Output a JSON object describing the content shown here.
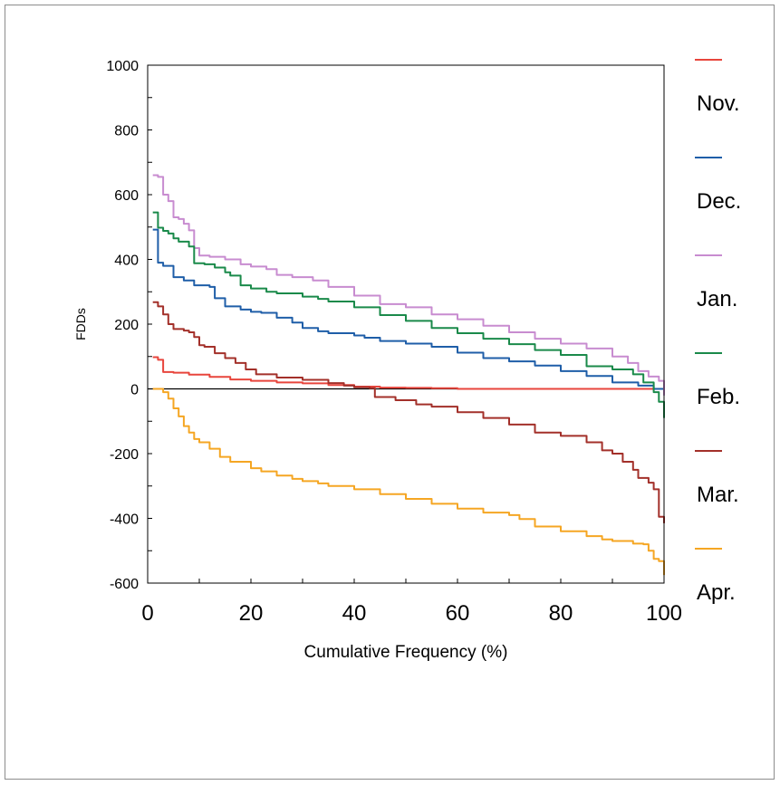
{
  "chart_data": {
    "type": "line",
    "title": "",
    "xlabel": "Cumulative Frequency (%)",
    "ylabel": "FDDs",
    "xlim": [
      0,
      100
    ],
    "ylim": [
      -600,
      1000
    ],
    "x_ticks": [
      0,
      20,
      40,
      60,
      80,
      100
    ],
    "y_ticks": [
      -600,
      -400,
      -200,
      0,
      200,
      400,
      600,
      800,
      1000
    ],
    "zero_line": true,
    "grid": false,
    "legend_position": "right",
    "series": [
      {
        "name": "Nov.",
        "color": "#e8453c",
        "points": [
          [
            1,
            98
          ],
          [
            2,
            90
          ],
          [
            3,
            52
          ],
          [
            5,
            50
          ],
          [
            8,
            44
          ],
          [
            12,
            37
          ],
          [
            16,
            29
          ],
          [
            20,
            25
          ],
          [
            25,
            20
          ],
          [
            30,
            17
          ],
          [
            35,
            12
          ],
          [
            40,
            7
          ],
          [
            45,
            4
          ],
          [
            50,
            3
          ],
          [
            55,
            2
          ],
          [
            60,
            0
          ],
          [
            70,
            0
          ],
          [
            80,
            0
          ],
          [
            90,
            0
          ],
          [
            95,
            0
          ],
          [
            100,
            -5
          ]
        ]
      },
      {
        "name": "Dec.",
        "color": "#1f5ea8",
        "points": [
          [
            1,
            492
          ],
          [
            2,
            390
          ],
          [
            3,
            380
          ],
          [
            5,
            345
          ],
          [
            7,
            335
          ],
          [
            9,
            320
          ],
          [
            12,
            315
          ],
          [
            13,
            280
          ],
          [
            15,
            255
          ],
          [
            18,
            245
          ],
          [
            20,
            238
          ],
          [
            22,
            235
          ],
          [
            25,
            220
          ],
          [
            28,
            205
          ],
          [
            30,
            188
          ],
          [
            33,
            178
          ],
          [
            35,
            172
          ],
          [
            40,
            165
          ],
          [
            42,
            158
          ],
          [
            45,
            148
          ],
          [
            50,
            140
          ],
          [
            55,
            130
          ],
          [
            60,
            112
          ],
          [
            65,
            95
          ],
          [
            70,
            85
          ],
          [
            75,
            72
          ],
          [
            80,
            55
          ],
          [
            85,
            40
          ],
          [
            90,
            20
          ],
          [
            95,
            10
          ],
          [
            98,
            0
          ],
          [
            100,
            -20
          ]
        ]
      },
      {
        "name": "Jan.",
        "color": "#c88cd0",
        "points": [
          [
            1,
            660
          ],
          [
            2,
            655
          ],
          [
            3,
            600
          ],
          [
            4,
            580
          ],
          [
            5,
            530
          ],
          [
            6,
            525
          ],
          [
            7,
            510
          ],
          [
            8,
            490
          ],
          [
            9,
            435
          ],
          [
            10,
            412
          ],
          [
            12,
            408
          ],
          [
            15,
            400
          ],
          [
            18,
            385
          ],
          [
            20,
            378
          ],
          [
            23,
            370
          ],
          [
            25,
            352
          ],
          [
            28,
            345
          ],
          [
            32,
            335
          ],
          [
            35,
            315
          ],
          [
            40,
            288
          ],
          [
            45,
            262
          ],
          [
            50,
            252
          ],
          [
            55,
            230
          ],
          [
            60,
            215
          ],
          [
            65,
            195
          ],
          [
            70,
            175
          ],
          [
            75,
            155
          ],
          [
            80,
            140
          ],
          [
            85,
            125
          ],
          [
            90,
            100
          ],
          [
            93,
            80
          ],
          [
            95,
            55
          ],
          [
            97,
            38
          ],
          [
            99,
            25
          ],
          [
            100,
            -20
          ]
        ]
      },
      {
        "name": "Feb.",
        "color": "#1a8a4a",
        "points": [
          [
            1,
            545
          ],
          [
            2,
            498
          ],
          [
            3,
            488
          ],
          [
            4,
            480
          ],
          [
            5,
            465
          ],
          [
            6,
            455
          ],
          [
            7,
            455
          ],
          [
            8,
            440
          ],
          [
            9,
            388
          ],
          [
            11,
            385
          ],
          [
            13,
            375
          ],
          [
            15,
            360
          ],
          [
            16,
            350
          ],
          [
            18,
            320
          ],
          [
            20,
            310
          ],
          [
            23,
            300
          ],
          [
            25,
            295
          ],
          [
            30,
            285
          ],
          [
            33,
            278
          ],
          [
            35,
            270
          ],
          [
            40,
            252
          ],
          [
            45,
            228
          ],
          [
            50,
            210
          ],
          [
            55,
            188
          ],
          [
            60,
            172
          ],
          [
            65,
            155
          ],
          [
            70,
            138
          ],
          [
            75,
            120
          ],
          [
            80,
            105
          ],
          [
            85,
            70
          ],
          [
            90,
            60
          ],
          [
            94,
            45
          ],
          [
            96,
            20
          ],
          [
            98,
            -10
          ],
          [
            99,
            -40
          ],
          [
            100,
            -90
          ]
        ]
      },
      {
        "name": "Mar.",
        "color": "#a3302a",
        "points": [
          [
            1,
            268
          ],
          [
            2,
            255
          ],
          [
            3,
            230
          ],
          [
            4,
            200
          ],
          [
            5,
            185
          ],
          [
            7,
            180
          ],
          [
            8,
            175
          ],
          [
            9,
            160
          ],
          [
            10,
            135
          ],
          [
            11,
            130
          ],
          [
            13,
            110
          ],
          [
            15,
            95
          ],
          [
            17,
            80
          ],
          [
            19,
            60
          ],
          [
            21,
            45
          ],
          [
            25,
            35
          ],
          [
            30,
            28
          ],
          [
            35,
            18
          ],
          [
            38,
            10
          ],
          [
            40,
            5
          ],
          [
            43,
            2
          ],
          [
            44,
            -25
          ],
          [
            48,
            -35
          ],
          [
            52,
            -48
          ],
          [
            55,
            -55
          ],
          [
            60,
            -72
          ],
          [
            65,
            -90
          ],
          [
            70,
            -110
          ],
          [
            75,
            -135
          ],
          [
            80,
            -145
          ],
          [
            85,
            -165
          ],
          [
            88,
            -190
          ],
          [
            90,
            -200
          ],
          [
            92,
            -225
          ],
          [
            94,
            -250
          ],
          [
            95,
            -275
          ],
          [
            97,
            -290
          ],
          [
            98,
            -310
          ],
          [
            99,
            -395
          ],
          [
            100,
            -415
          ]
        ]
      },
      {
        "name": "Apr.",
        "color": "#f5a623",
        "points": [
          [
            1,
            0
          ],
          [
            2,
            0
          ],
          [
            3,
            -10
          ],
          [
            4,
            -30
          ],
          [
            5,
            -60
          ],
          [
            6,
            -85
          ],
          [
            7,
            -115
          ],
          [
            8,
            -135
          ],
          [
            9,
            -155
          ],
          [
            10,
            -165
          ],
          [
            12,
            -185
          ],
          [
            14,
            -210
          ],
          [
            16,
            -225
          ],
          [
            20,
            -245
          ],
          [
            22,
            -255
          ],
          [
            25,
            -268
          ],
          [
            28,
            -278
          ],
          [
            30,
            -285
          ],
          [
            33,
            -292
          ],
          [
            35,
            -300
          ],
          [
            40,
            -310
          ],
          [
            45,
            -325
          ],
          [
            50,
            -340
          ],
          [
            55,
            -355
          ],
          [
            60,
            -370
          ],
          [
            65,
            -382
          ],
          [
            70,
            -390
          ],
          [
            72,
            -402
          ],
          [
            75,
            -425
          ],
          [
            80,
            -440
          ],
          [
            85,
            -455
          ],
          [
            88,
            -465
          ],
          [
            90,
            -470
          ],
          [
            94,
            -478
          ],
          [
            96,
            -480
          ],
          [
            97,
            -500
          ],
          [
            98,
            -525
          ],
          [
            99,
            -532
          ],
          [
            100,
            -575
          ]
        ]
      }
    ]
  }
}
